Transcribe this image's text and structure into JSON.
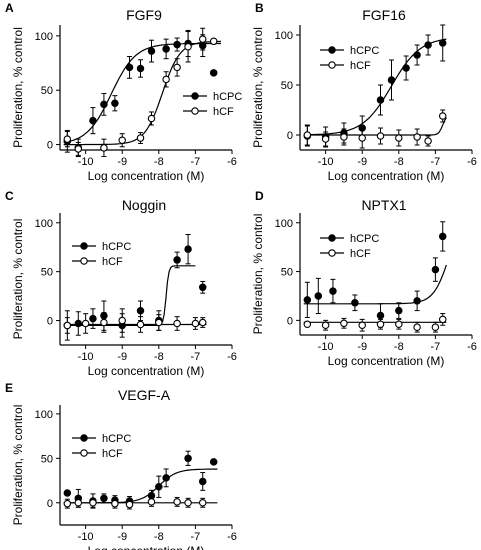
{
  "chart_data": [
    {
      "type": "scatter",
      "panel": "A",
      "title": "FGF9",
      "xlabel": "Log concentration (M)",
      "ylabel": "Proliferation, % control",
      "xlim": [
        -10.7,
        -6
      ],
      "ylim": [
        -5,
        110
      ],
      "xticks": [
        -10,
        -9,
        -8,
        -7,
        -6
      ],
      "yticks": [
        0,
        50,
        100
      ],
      "xtick_labels": [
        "-10",
        "-9",
        "-8",
        "-7",
        "-6"
      ],
      "ytick_labels": [
        "0",
        "50",
        "100"
      ],
      "legend_position": "right",
      "series": [
        {
          "name": "hCPC",
          "marker": "filled",
          "points": [
            {
              "x": -10.5,
              "y": 3,
              "err": 10
            },
            {
              "x": -10.2,
              "y": -3,
              "err": 8
            },
            {
              "x": -9.8,
              "y": 22,
              "err": 12
            },
            {
              "x": -9.5,
              "y": 37,
              "err": 10
            },
            {
              "x": -9.2,
              "y": 38,
              "err": 7
            },
            {
              "x": -8.8,
              "y": 71,
              "err": 10
            },
            {
              "x": -8.5,
              "y": 70,
              "err": 8
            },
            {
              "x": -8.2,
              "y": 86,
              "err": 10
            },
            {
              "x": -7.8,
              "y": 88,
              "err": 9
            },
            {
              "x": -7.5,
              "y": 92,
              "err": 6
            },
            {
              "x": -7.2,
              "y": 93,
              "err": 12
            },
            {
              "x": -6.8,
              "y": 91,
              "err": 10
            },
            {
              "x": -6.5,
              "y": 66,
              "err": 0
            }
          ],
          "fit": {
            "bottom": 0,
            "top": 93,
            "logEC50": -9.3,
            "hill": 1.3,
            "xmin": -10.6,
            "xmax": -6.3
          }
        },
        {
          "name": "hCF",
          "marker": "open",
          "points": [
            {
              "x": -10.5,
              "y": 5,
              "err": 7
            },
            {
              "x": -10.2,
              "y": -4,
              "err": 6
            },
            {
              "x": -9.5,
              "y": -3,
              "err": 8
            },
            {
              "x": -9.0,
              "y": 4,
              "err": 6
            },
            {
              "x": -8.5,
              "y": 6,
              "err": 5
            },
            {
              "x": -8.2,
              "y": 24,
              "err": 6
            },
            {
              "x": -7.8,
              "y": 60,
              "err": 7
            },
            {
              "x": -7.5,
              "y": 71,
              "err": 8
            },
            {
              "x": -7.2,
              "y": 90,
              "err": 14
            },
            {
              "x": -6.8,
              "y": 97,
              "err": 10
            },
            {
              "x": -6.5,
              "y": 95,
              "err": 0
            }
          ],
          "fit": {
            "bottom": 0,
            "top": 95,
            "logEC50": -7.9,
            "hill": 1.8,
            "xmin": -10.6,
            "xmax": -6.3
          }
        }
      ]
    },
    {
      "type": "scatter",
      "panel": "B",
      "title": "FGF16",
      "xlabel": "Log concentration (M)",
      "ylabel": "Proliferation, % control",
      "xlim": [
        -10.7,
        -6
      ],
      "ylim": [
        -15,
        110
      ],
      "xticks": [
        -10,
        -9,
        -8,
        -7,
        -6
      ],
      "yticks": [
        0,
        50,
        100
      ],
      "xtick_labels": [
        "-10",
        "-9",
        "-8",
        "-7",
        "-6"
      ],
      "ytick_labels": [
        "0",
        "50",
        "100"
      ],
      "legend_position": "top-left",
      "series": [
        {
          "name": "hCPC",
          "marker": "filled",
          "points": [
            {
              "x": -10.5,
              "y": -1,
              "err": 10
            },
            {
              "x": -10.0,
              "y": -2,
              "err": 10
            },
            {
              "x": -9.5,
              "y": 2,
              "err": 10
            },
            {
              "x": -9.0,
              "y": 7,
              "err": 12
            },
            {
              "x": -8.5,
              "y": 35,
              "err": 15
            },
            {
              "x": -8.2,
              "y": 55,
              "err": 20
            },
            {
              "x": -7.8,
              "y": 67,
              "err": 12
            },
            {
              "x": -7.5,
              "y": 80,
              "err": 10
            },
            {
              "x": -7.2,
              "y": 90,
              "err": 10
            },
            {
              "x": -6.8,
              "y": 92,
              "err": 18
            }
          ],
          "fit": {
            "bottom": 0,
            "top": 98,
            "logEC50": -8.2,
            "hill": 1.1,
            "xmin": -10.6,
            "xmax": -6.7
          }
        },
        {
          "name": "hCF",
          "marker": "open",
          "points": [
            {
              "x": -10.5,
              "y": 0,
              "err": 10
            },
            {
              "x": -10.0,
              "y": -4,
              "err": 7
            },
            {
              "x": -9.5,
              "y": -2,
              "err": 8
            },
            {
              "x": -9.0,
              "y": -3,
              "err": 10
            },
            {
              "x": -8.5,
              "y": -1,
              "err": 8
            },
            {
              "x": -8.0,
              "y": -3,
              "err": 8
            },
            {
              "x": -7.5,
              "y": -2,
              "err": 8
            },
            {
              "x": -7.2,
              "y": -6,
              "err": 5
            },
            {
              "x": -6.8,
              "y": 19,
              "err": 6
            }
          ],
          "fit": {
            "bottom": 0,
            "top": 20,
            "logEC50": -6.8,
            "hill": 8,
            "xmin": -10.6,
            "xmax": -6.7
          }
        }
      ]
    },
    {
      "type": "scatter",
      "panel": "C",
      "title": "Noggin",
      "xlabel": "Log concentration (M)",
      "ylabel": "Proliferation, % control",
      "xlim": [
        -10.7,
        -6
      ],
      "ylim": [
        -25,
        110
      ],
      "xticks": [
        -10,
        -9,
        -8,
        -7,
        -6
      ],
      "yticks": [
        0,
        50,
        100
      ],
      "xtick_labels": [
        "-10",
        "-9",
        "-8",
        "-7",
        "-6"
      ],
      "ytick_labels": [
        "0",
        "50",
        "100"
      ],
      "legend_position": "top-left",
      "series": [
        {
          "name": "hCPC",
          "marker": "filled",
          "points": [
            {
              "x": -10.5,
              "y": -5,
              "err": 15
            },
            {
              "x": -10.2,
              "y": -3,
              "err": 12
            },
            {
              "x": -9.8,
              "y": 2,
              "err": 10
            },
            {
              "x": -9.5,
              "y": 5,
              "err": 15
            },
            {
              "x": -9.0,
              "y": -5,
              "err": 12
            },
            {
              "x": -8.5,
              "y": 10,
              "err": 10
            },
            {
              "x": -8.0,
              "y": 0,
              "err": 10
            },
            {
              "x": -7.5,
              "y": 62,
              "err": 8
            },
            {
              "x": -7.2,
              "y": 73,
              "err": 15
            },
            {
              "x": -6.8,
              "y": 34,
              "err": 6
            }
          ],
          "fit": {
            "bottom": -5,
            "top": 56,
            "logEC50": -7.8,
            "hill": 12,
            "xmin": -10.6,
            "xmax": -7.0
          }
        },
        {
          "name": "hCF",
          "marker": "open",
          "points": [
            {
              "x": -10.5,
              "y": -5,
              "err": 8
            },
            {
              "x": -10.0,
              "y": -3,
              "err": 10
            },
            {
              "x": -9.5,
              "y": -2,
              "err": 10
            },
            {
              "x": -9.0,
              "y": 0,
              "err": 12
            },
            {
              "x": -8.5,
              "y": -4,
              "err": 8
            },
            {
              "x": -8.0,
              "y": -2,
              "err": 8
            },
            {
              "x": -7.5,
              "y": -3,
              "err": 7
            },
            {
              "x": -7.0,
              "y": -3,
              "err": 6
            },
            {
              "x": -6.8,
              "y": -2,
              "err": 5
            }
          ],
          "fit": {
            "bottom": -4,
            "top": -4,
            "logEC50": -8,
            "hill": 1,
            "xmin": -10.6,
            "xmax": -6.7
          }
        }
      ]
    },
    {
      "type": "scatter",
      "panel": "D",
      "title": "NPTX1",
      "xlabel": "Log concentration (M)",
      "ylabel": "Proliferation, % control",
      "xlim": [
        -10.7,
        -6
      ],
      "ylim": [
        -15,
        110
      ],
      "xticks": [
        -10,
        -9,
        -8,
        -7,
        -6
      ],
      "yticks": [
        0,
        50,
        100
      ],
      "xtick_labels": [
        "-10",
        "-9",
        "-8",
        "-7",
        "-6"
      ],
      "ytick_labels": [
        "0",
        "50",
        "100"
      ],
      "legend_position": "top-left",
      "series": [
        {
          "name": "hCPC",
          "marker": "filled",
          "points": [
            {
              "x": -10.5,
              "y": 21,
              "err": 18
            },
            {
              "x": -10.2,
              "y": 25,
              "err": 18
            },
            {
              "x": -9.8,
              "y": 30,
              "err": 12
            },
            {
              "x": -9.2,
              "y": 18,
              "err": 8
            },
            {
              "x": -8.5,
              "y": 5,
              "err": 12
            },
            {
              "x": -8.0,
              "y": 10,
              "err": 8
            },
            {
              "x": -7.5,
              "y": 20,
              "err": 10
            },
            {
              "x": -7.0,
              "y": 52,
              "err": 12
            },
            {
              "x": -6.8,
              "y": 86,
              "err": 15
            }
          ],
          "fit": {
            "bottom": 17,
            "top": 120,
            "logEC50": -6.6,
            "hill": 2,
            "xmin": -10.6,
            "xmax": -6.7
          }
        },
        {
          "name": "hCF",
          "marker": "open",
          "points": [
            {
              "x": -10.5,
              "y": -4,
              "err": 0
            },
            {
              "x": -10.0,
              "y": -5,
              "err": 5
            },
            {
              "x": -9.5,
              "y": -3,
              "err": 5
            },
            {
              "x": -9.0,
              "y": -5,
              "err": 6
            },
            {
              "x": -8.5,
              "y": -4,
              "err": 5
            },
            {
              "x": -8.0,
              "y": -4,
              "err": 5
            },
            {
              "x": -7.5,
              "y": -7,
              "err": 5
            },
            {
              "x": -7.0,
              "y": -7,
              "err": 5
            },
            {
              "x": -6.8,
              "y": 1,
              "err": 6
            }
          ],
          "fit": {
            "bottom": -2,
            "top": -2,
            "logEC50": -8,
            "hill": 1,
            "xmin": -10.6,
            "xmax": -6.7
          }
        }
      ]
    },
    {
      "type": "scatter",
      "panel": "E",
      "title": "VEGF-A",
      "xlabel": "Log concentration (M)",
      "ylabel": "Proliferation, % control",
      "xlim": [
        -10.7,
        -6
      ],
      "ylim": [
        -25,
        110
      ],
      "xticks": [
        -10,
        -9,
        -8,
        -7,
        -6
      ],
      "yticks": [
        0,
        50,
        100
      ],
      "xtick_labels": [
        "-10",
        "-9",
        "-8",
        "-7",
        "-6"
      ],
      "ytick_labels": [
        "0",
        "50",
        "100"
      ],
      "legend_position": "top-left",
      "series": [
        {
          "name": "hCPC",
          "marker": "filled",
          "points": [
            {
              "x": -10.5,
              "y": 11,
              "err": 0
            },
            {
              "x": -10.2,
              "y": 5,
              "err": 10
            },
            {
              "x": -9.8,
              "y": 2,
              "err": 8
            },
            {
              "x": -9.5,
              "y": 5,
              "err": 5
            },
            {
              "x": -9.2,
              "y": 3,
              "err": 5
            },
            {
              "x": -8.8,
              "y": 2,
              "err": 5
            },
            {
              "x": -8.2,
              "y": 8,
              "err": 6
            },
            {
              "x": -8.0,
              "y": 18,
              "err": 12
            },
            {
              "x": -7.8,
              "y": 28,
              "err": 10
            },
            {
              "x": -7.2,
              "y": 50,
              "err": 8
            },
            {
              "x": -6.8,
              "y": 24,
              "err": 10
            },
            {
              "x": -6.5,
              "y": 46,
              "err": 0
            }
          ],
          "fit": {
            "bottom": 0,
            "top": 38,
            "logEC50": -8.0,
            "hill": 1.8,
            "xmin": -10.6,
            "xmax": -6.4
          }
        },
        {
          "name": "hCF",
          "marker": "open",
          "points": [
            {
              "x": -10.5,
              "y": -1,
              "err": 5
            },
            {
              "x": -10.2,
              "y": 0,
              "err": 5
            },
            {
              "x": -9.8,
              "y": 0,
              "err": 5
            },
            {
              "x": -9.2,
              "y": -1,
              "err": 5
            },
            {
              "x": -8.8,
              "y": -2,
              "err": 5
            },
            {
              "x": -8.2,
              "y": 1,
              "err": 5
            },
            {
              "x": -7.5,
              "y": 1,
              "err": 5
            },
            {
              "x": -7.2,
              "y": 0,
              "err": 5
            },
            {
              "x": -6.8,
              "y": 0,
              "err": 5
            }
          ],
          "fit": {
            "bottom": 0,
            "top": 0,
            "logEC50": -8,
            "hill": 1,
            "xmin": -10.6,
            "xmax": -6.4
          }
        }
      ]
    }
  ]
}
